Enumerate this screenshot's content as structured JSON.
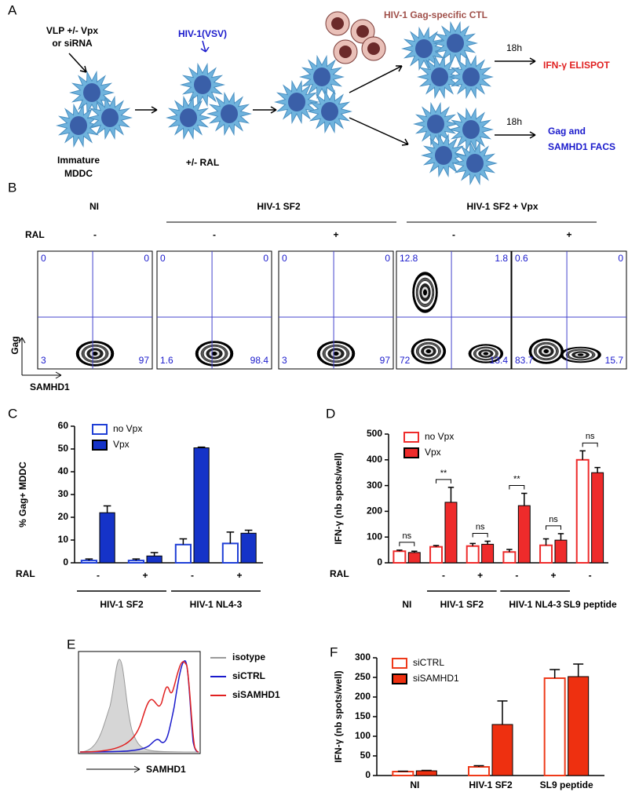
{
  "panel_labels": [
    "A",
    "B",
    "C",
    "D",
    "E",
    "F"
  ],
  "diagram": {
    "vlp": "VLP +/- Vpx",
    "sirna": "or siRNA",
    "virus": "HIV-1(VSV)",
    "immature": "Immature",
    "mddc": "MDDC",
    "ral": "+/- RAL",
    "ctl": "HIV-1 Gag-specific CTL",
    "time_top": "18h",
    "time_bottom": "18h",
    "elispot": "IFN-γ ELISPOT",
    "facs_1": "Gag and",
    "facs_2": "SAMHD1 FACS"
  },
  "facs": {
    "groups": [
      "NI",
      "HIV-1 SF2",
      "HIV-1 SF2 + Vpx"
    ],
    "ral_label": "RAL",
    "ral": [
      "-",
      "-",
      "+",
      "-",
      "+"
    ],
    "quadrants": [
      [
        0,
        0,
        3,
        97
      ],
      [
        0,
        0,
        1.6,
        98.4
      ],
      [
        0,
        0,
        3,
        97
      ],
      [
        12.8,
        1.8,
        72,
        13.4
      ],
      [
        0.6,
        0,
        83.7,
        15.7
      ]
    ],
    "y_label": "Gag",
    "x_label": "SAMHD1"
  },
  "histogram": {
    "legend": [
      {
        "name": "isotype",
        "color": "#9a9a9a"
      },
      {
        "name": "siCTRL",
        "color": "#1a1acc"
      },
      {
        "name": "siSAMHD1",
        "color": "#e02020"
      }
    ],
    "x_label": "SAMHD1"
  },
  "chart_data": [
    {
      "type": "bar",
      "y_label": "% Gag+ MDDC",
      "categories": [
        "-",
        "+",
        "-",
        "+"
      ],
      "row_label": "RAL",
      "group_labels": [
        "HIV-1 SF2",
        "HIV-1 NL4-3"
      ],
      "series": [
        {
          "name": "no Vpx",
          "color": "#1f3fd6",
          "filled": false,
          "values": [
            1,
            1,
            8,
            8.5
          ],
          "errors": [
            0.7,
            0.7,
            2.5,
            5
          ]
        },
        {
          "name": "Vpx",
          "color": "#1533c8",
          "filled": true,
          "values": [
            22,
            3,
            50.5,
            13
          ],
          "errors": [
            3,
            1.5,
            0.3,
            1.3
          ]
        }
      ],
      "ylim": [
        0,
        60
      ],
      "yticks": [
        0,
        10,
        20,
        30,
        40,
        50,
        60
      ]
    },
    {
      "type": "bar",
      "y_label": "IFN-γ (nb spots/well)",
      "categories": [
        null,
        "-",
        "+",
        "-",
        "+",
        "-"
      ],
      "row_label": "RAL",
      "group_labels": [
        "NI",
        "HIV-1 SF2",
        "HIV-1 NL4-3",
        "SL9 peptide"
      ],
      "annotations": [
        "ns",
        "**",
        "ns",
        "**",
        "ns",
        "ns"
      ],
      "series": [
        {
          "name": "no Vpx",
          "color": "#ee2b2b",
          "filled": false,
          "values": [
            45,
            62,
            65,
            42,
            68,
            400
          ],
          "errors": [
            4,
            5,
            10,
            10,
            25,
            35
          ]
        },
        {
          "name": "Vpx",
          "color": "#ee2b2b",
          "filled": true,
          "values": [
            40,
            235,
            72,
            222,
            88,
            350
          ],
          "errors": [
            5,
            58,
            12,
            48,
            25,
            20
          ]
        }
      ],
      "ylim": [
        0,
        500
      ],
      "yticks": [
        0,
        100,
        200,
        300,
        400,
        500
      ]
    },
    {
      "type": "bar",
      "y_label": "IFN-γ (nb spots/well)",
      "categories": [
        "NI",
        "HIV-1 SF2",
        "SL9 peptide"
      ],
      "series": [
        {
          "name": "siCTRL",
          "color": "#ee3a1a",
          "filled": false,
          "values": [
            10,
            22,
            248
          ],
          "errors": [
            1,
            3,
            22
          ]
        },
        {
          "name": "siSAMHD1",
          "color": "#ee3010",
          "filled": true,
          "values": [
            12,
            130,
            252
          ],
          "errors": [
            1,
            60,
            32
          ]
        }
      ],
      "ylim": [
        0,
        300
      ],
      "yticks": [
        0,
        50,
        100,
        150,
        200,
        250,
        300
      ]
    }
  ]
}
